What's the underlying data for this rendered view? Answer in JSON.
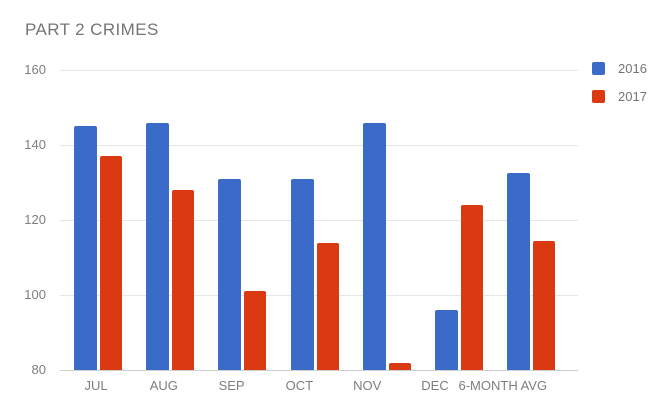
{
  "chart_data": {
    "type": "bar",
    "title": "PART 2 CRIMES",
    "categories": [
      "JUL",
      "AUG",
      "SEP",
      "OCT",
      "NOV",
      "DEC",
      "6-MONTH AVG"
    ],
    "series": [
      {
        "name": "2016",
        "color": "#3A6BC9",
        "values": [
          145,
          146,
          131,
          131,
          146,
          96,
          132.5
        ]
      },
      {
        "name": "2017",
        "color": "#DB3912",
        "values": [
          137,
          128,
          101,
          114,
          82,
          124,
          114.3
        ]
      }
    ],
    "xlabel": "",
    "ylabel": "",
    "ylim": [
      80,
      160
    ],
    "yticks": [
      80,
      100,
      120,
      140,
      160
    ],
    "grid": true,
    "legend_position": "right",
    "gridline_color": "#e6e6e6",
    "baseline_color": "#cfcfcf",
    "title_color": "#757575",
    "tick_color": "#7e7e7e"
  }
}
